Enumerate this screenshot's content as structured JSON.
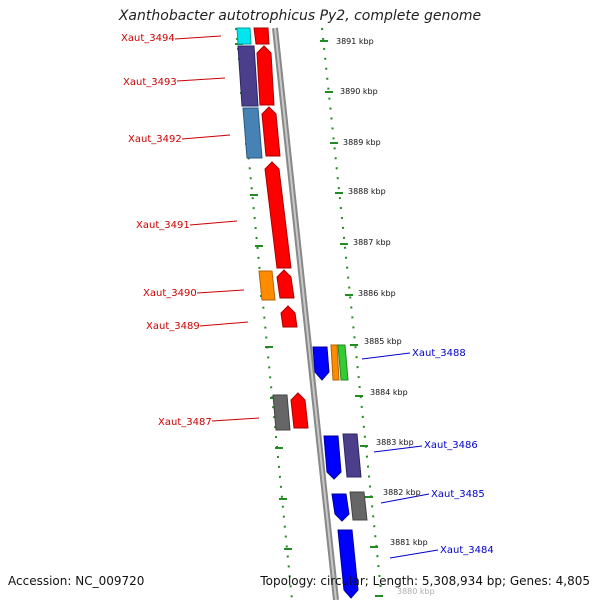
{
  "title": "Xanthobacter autotrophicus Py2, complete genome",
  "footer": {
    "accession": "Accession: NC_009720",
    "summary": "Topology: circular; Length: 5,308,934 bp; Genes: 4,805"
  },
  "colors": {
    "ruler": "#228b22",
    "backbone": "#999999",
    "forward_label": "#cc0000",
    "reverse_label": "#0000cc"
  },
  "kbp_marks": [
    "3891 kbp",
    "3890 kbp",
    "3889 kbp",
    "3888 kbp",
    "3887 kbp",
    "3886 kbp",
    "3885 kbp",
    "3884 kbp",
    "3883 kbp",
    "3882 kbp",
    "3881 kbp",
    "3880 kbp"
  ],
  "gene_labels": [
    {
      "text": "Xaut_3494",
      "strand": "forward"
    },
    {
      "text": "Xaut_3493",
      "strand": "forward"
    },
    {
      "text": "Xaut_3492",
      "strand": "forward"
    },
    {
      "text": "Xaut_3491",
      "strand": "forward"
    },
    {
      "text": "Xaut_3490",
      "strand": "forward"
    },
    {
      "text": "Xaut_3489",
      "strand": "forward"
    },
    {
      "text": "Xaut_3488",
      "strand": "reverse"
    },
    {
      "text": "Xaut_3487",
      "strand": "forward"
    },
    {
      "text": "Xaut_3486",
      "strand": "reverse"
    },
    {
      "text": "Xaut_3485",
      "strand": "reverse"
    },
    {
      "text": "Xaut_3484",
      "strand": "reverse"
    }
  ]
}
